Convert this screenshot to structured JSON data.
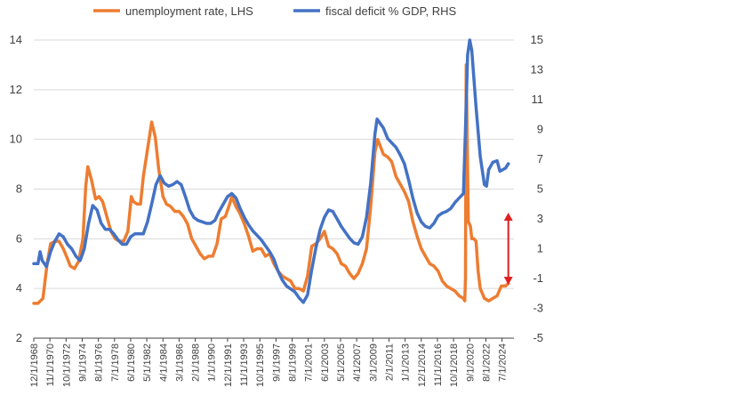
{
  "chart_data": {
    "type": "line",
    "legend": {
      "placement": "top",
      "items": [
        "unemployment rate, LHS",
        "fiscal deficit % GDP, RHS"
      ]
    },
    "ylim_left": [
      2,
      14
    ],
    "yticks_left": [
      "2",
      "4",
      "6",
      "8",
      "10",
      "12",
      "14"
    ],
    "ylim_right": [
      -5,
      15
    ],
    "yticks_right": [
      "-5",
      "-3",
      "-1",
      "1",
      "3",
      "5",
      "7",
      "9",
      "11",
      "13",
      "15"
    ],
    "xlim": [
      "12/1/1968",
      "12/1/2025"
    ],
    "xticks": [
      "12/1/1968",
      "11/1/1970",
      "10/1/1972",
      "9/1/1974",
      "8/1/1976",
      "7/1/1978",
      "6/1/1980",
      "5/1/1982",
      "4/1/1984",
      "3/1/1986",
      "2/1/1988",
      "1/1/1990",
      "12/1/1991",
      "11/1/1993",
      "10/1/1995",
      "9/1/1997",
      "8/1/1999",
      "7/1/2001",
      "6/1/2003",
      "5/1/2005",
      "4/1/2007",
      "3/1/2009",
      "2/1/2011",
      "1/1/2013",
      "12/1/2014",
      "11/1/2016",
      "10/1/2018",
      "9/1/2020",
      "8/1/2022",
      "7/1/2024"
    ],
    "grid": "horizontal",
    "colors": {
      "unemployment": "#ED7D31",
      "deficit": "#4472C4",
      "annotation_arrow": "#E02020",
      "grid": "#D9D9D9",
      "axis": "#404040"
    },
    "annotation": {
      "type": "double-arrow",
      "x": "4/1/2025",
      "y_from": 3.3,
      "y_to": -1.3,
      "axis": "right"
    },
    "series": [
      {
        "name": "unemployment rate, LHS",
        "axis": "left",
        "points": [
          [
            "12/1/1968",
            3.4
          ],
          [
            "6/1/1969",
            3.4
          ],
          [
            "1/1/1970",
            3.6
          ],
          [
            "7/1/1970",
            5.0
          ],
          [
            "12/1/1970",
            5.8
          ],
          [
            "6/1/1971",
            5.9
          ],
          [
            "12/1/1971",
            5.9
          ],
          [
            "6/1/1972",
            5.6
          ],
          [
            "12/1/1972",
            5.2
          ],
          [
            "4/1/1973",
            4.9
          ],
          [
            "10/1/1973",
            4.8
          ],
          [
            "4/1/1974",
            5.1
          ],
          [
            "10/1/1974",
            6.0
          ],
          [
            "2/1/1975",
            8.1
          ],
          [
            "5/1/1975",
            8.9
          ],
          [
            "10/1/1975",
            8.4
          ],
          [
            "4/1/1976",
            7.6
          ],
          [
            "9/1/1976",
            7.7
          ],
          [
            "2/1/1977",
            7.5
          ],
          [
            "8/1/1977",
            6.9
          ],
          [
            "2/1/1978",
            6.3
          ],
          [
            "8/1/1978",
            6.0
          ],
          [
            "2/1/1979",
            5.9
          ],
          [
            "8/1/1979",
            5.9
          ],
          [
            "2/1/1980",
            6.3
          ],
          [
            "7/1/1980",
            7.7
          ],
          [
            "10/1/1980",
            7.5
          ],
          [
            "3/1/1981",
            7.4
          ],
          [
            "8/1/1981",
            7.4
          ],
          [
            "12/1/1981",
            8.5
          ],
          [
            "6/1/1982",
            9.6
          ],
          [
            "12/1/1982",
            10.7
          ],
          [
            "5/1/1983",
            10.1
          ],
          [
            "10/1/1983",
            8.8
          ],
          [
            "4/1/1984",
            7.7
          ],
          [
            "9/1/1984",
            7.4
          ],
          [
            "3/1/1985",
            7.3
          ],
          [
            "9/1/1985",
            7.1
          ],
          [
            "3/1/1986",
            7.1
          ],
          [
            "9/1/1986",
            6.9
          ],
          [
            "3/1/1987",
            6.6
          ],
          [
            "9/1/1987",
            6.0
          ],
          [
            "3/1/1988",
            5.7
          ],
          [
            "9/1/1988",
            5.4
          ],
          [
            "3/1/1989",
            5.2
          ],
          [
            "9/1/1989",
            5.3
          ],
          [
            "3/1/1990",
            5.3
          ],
          [
            "9/1/1990",
            5.8
          ],
          [
            "3/1/1991",
            6.8
          ],
          [
            "9/1/1991",
            6.9
          ],
          [
            "3/1/1992",
            7.4
          ],
          [
            "6/1/1992",
            7.7
          ],
          [
            "12/1/1992",
            7.3
          ],
          [
            "6/1/1993",
            7.0
          ],
          [
            "12/1/1993",
            6.6
          ],
          [
            "6/1/1994",
            6.1
          ],
          [
            "12/1/1994",
            5.5
          ],
          [
            "6/1/1995",
            5.6
          ],
          [
            "12/1/1995",
            5.6
          ],
          [
            "6/1/1996",
            5.3
          ],
          [
            "12/1/1996",
            5.4
          ],
          [
            "6/1/1997",
            5.0
          ],
          [
            "12/1/1997",
            4.7
          ],
          [
            "6/1/1998",
            4.5
          ],
          [
            "12/1/1998",
            4.4
          ],
          [
            "6/1/1999",
            4.3
          ],
          [
            "12/1/1999",
            4.0
          ],
          [
            "6/1/2000",
            4.0
          ],
          [
            "12/1/2000",
            3.9
          ],
          [
            "6/1/2001",
            4.5
          ],
          [
            "12/1/2001",
            5.7
          ],
          [
            "6/1/2002",
            5.8
          ],
          [
            "12/1/2002",
            6.0
          ],
          [
            "6/1/2003",
            6.3
          ],
          [
            "12/1/2003",
            5.7
          ],
          [
            "6/1/2004",
            5.6
          ],
          [
            "12/1/2004",
            5.4
          ],
          [
            "6/1/2005",
            5.0
          ],
          [
            "12/1/2005",
            4.9
          ],
          [
            "6/1/2006",
            4.6
          ],
          [
            "12/1/2006",
            4.4
          ],
          [
            "6/1/2007",
            4.6
          ],
          [
            "12/1/2007",
            5.0
          ],
          [
            "6/1/2008",
            5.6
          ],
          [
            "12/1/2008",
            7.3
          ],
          [
            "6/1/2009",
            9.5
          ],
          [
            "10/1/2009",
            10.0
          ],
          [
            "6/1/2010",
            9.4
          ],
          [
            "12/1/2010",
            9.3
          ],
          [
            "6/1/2011",
            9.1
          ],
          [
            "12/1/2011",
            8.5
          ],
          [
            "6/1/2012",
            8.2
          ],
          [
            "12/1/2012",
            7.9
          ],
          [
            "6/1/2013",
            7.5
          ],
          [
            "12/1/2013",
            6.7
          ],
          [
            "6/1/2014",
            6.1
          ],
          [
            "12/1/2014",
            5.6
          ],
          [
            "6/1/2015",
            5.3
          ],
          [
            "12/1/2015",
            5.0
          ],
          [
            "6/1/2016",
            4.9
          ],
          [
            "12/1/2016",
            4.7
          ],
          [
            "6/1/2017",
            4.3
          ],
          [
            "12/1/2017",
            4.1
          ],
          [
            "6/1/2018",
            4.0
          ],
          [
            "12/1/2018",
            3.9
          ],
          [
            "6/1/2019",
            3.7
          ],
          [
            "12/1/2019",
            3.6
          ],
          [
            "2/1/2020",
            3.5
          ],
          [
            "3/1/2020",
            4.4
          ],
          [
            "4/1/2020",
            13.0
          ],
          [
            "5/1/2020",
            11.0
          ],
          [
            "7/1/2020",
            6.7
          ],
          [
            "10/1/2020",
            6.5
          ],
          [
            "12/1/2020",
            6.0
          ],
          [
            "3/1/2021",
            6.0
          ],
          [
            "6/1/2021",
            5.9
          ],
          [
            "9/1/2021",
            4.7
          ],
          [
            "12/1/2021",
            4.0
          ],
          [
            "6/1/2022",
            3.6
          ],
          [
            "12/1/2022",
            3.5
          ],
          [
            "6/1/2023",
            3.6
          ],
          [
            "12/1/2023",
            3.7
          ],
          [
            "6/1/2024",
            4.1
          ],
          [
            "12/1/2024",
            4.1
          ],
          [
            "4/1/2025",
            4.2
          ]
        ]
      },
      {
        "name": "fiscal deficit % GDP, RHS",
        "axis": "right",
        "points": [
          [
            "12/1/1968",
            0.0
          ],
          [
            "6/1/1969",
            0.0
          ],
          [
            "9/1/1969",
            0.8
          ],
          [
            "12/1/1969",
            0.2
          ],
          [
            "6/1/1970",
            -0.2
          ],
          [
            "12/1/1970",
            0.8
          ],
          [
            "6/1/1971",
            1.5
          ],
          [
            "12/1/1971",
            2.0
          ],
          [
            "6/1/1972",
            1.8
          ],
          [
            "12/1/1972",
            1.3
          ],
          [
            "6/1/1973",
            1.0
          ],
          [
            "12/1/1973",
            0.5
          ],
          [
            "6/1/1974",
            0.2
          ],
          [
            "12/1/1974",
            1.0
          ],
          [
            "6/1/1975",
            2.7
          ],
          [
            "12/1/1975",
            3.9
          ],
          [
            "6/1/1976",
            3.6
          ],
          [
            "12/1/1976",
            2.7
          ],
          [
            "6/1/1977",
            2.3
          ],
          [
            "12/1/1977",
            2.3
          ],
          [
            "6/1/1978",
            2.0
          ],
          [
            "12/1/1978",
            1.6
          ],
          [
            "6/1/1979",
            1.3
          ],
          [
            "12/1/1979",
            1.3
          ],
          [
            "6/1/1980",
            1.8
          ],
          [
            "12/1/1980",
            2.0
          ],
          [
            "6/1/1981",
            2.0
          ],
          [
            "12/1/1981",
            2.0
          ],
          [
            "6/1/1982",
            2.8
          ],
          [
            "12/1/1982",
            4.0
          ],
          [
            "6/1/1983",
            5.3
          ],
          [
            "12/1/1983",
            5.9
          ],
          [
            "6/1/1984",
            5.4
          ],
          [
            "12/1/1984",
            5.2
          ],
          [
            "6/1/1985",
            5.3
          ],
          [
            "12/1/1985",
            5.5
          ],
          [
            "6/1/1986",
            5.3
          ],
          [
            "12/1/1986",
            4.5
          ],
          [
            "6/1/1987",
            3.6
          ],
          [
            "12/1/1987",
            3.1
          ],
          [
            "6/1/1988",
            2.9
          ],
          [
            "12/1/1988",
            2.8
          ],
          [
            "6/1/1989",
            2.7
          ],
          [
            "12/1/1989",
            2.7
          ],
          [
            "6/1/1990",
            2.9
          ],
          [
            "12/1/1990",
            3.5
          ],
          [
            "6/1/1991",
            4.0
          ],
          [
            "12/1/1991",
            4.5
          ],
          [
            "6/1/1992",
            4.7
          ],
          [
            "12/1/1992",
            4.4
          ],
          [
            "6/1/1993",
            3.7
          ],
          [
            "12/1/1993",
            3.1
          ],
          [
            "6/1/1994",
            2.6
          ],
          [
            "12/1/1994",
            2.2
          ],
          [
            "6/1/1995",
            1.9
          ],
          [
            "12/1/1995",
            1.6
          ],
          [
            "6/1/1996",
            1.2
          ],
          [
            "12/1/1996",
            0.8
          ],
          [
            "6/1/1997",
            0.3
          ],
          [
            "12/1/1997",
            -0.5
          ],
          [
            "6/1/1998",
            -1.1
          ],
          [
            "12/1/1998",
            -1.5
          ],
          [
            "6/1/1999",
            -1.7
          ],
          [
            "12/1/1999",
            -1.9
          ],
          [
            "6/1/2000",
            -2.3
          ],
          [
            "12/1/2000",
            -2.6
          ],
          [
            "6/1/2001",
            -2.1
          ],
          [
            "12/1/2001",
            -0.4
          ],
          [
            "6/1/2002",
            1.1
          ],
          [
            "12/1/2002",
            2.3
          ],
          [
            "6/1/2003",
            3.1
          ],
          [
            "12/1/2003",
            3.6
          ],
          [
            "6/1/2004",
            3.5
          ],
          [
            "12/1/2004",
            3.0
          ],
          [
            "6/1/2005",
            2.5
          ],
          [
            "12/1/2005",
            2.1
          ],
          [
            "6/1/2006",
            1.7
          ],
          [
            "12/1/2006",
            1.4
          ],
          [
            "6/1/2007",
            1.3
          ],
          [
            "12/1/2007",
            1.8
          ],
          [
            "6/1/2008",
            3.1
          ],
          [
            "12/1/2008",
            5.4
          ],
          [
            "6/1/2009",
            8.7
          ],
          [
            "9/1/2009",
            9.7
          ],
          [
            "6/1/2010",
            9.1
          ],
          [
            "12/1/2010",
            8.4
          ],
          [
            "6/1/2011",
            8.1
          ],
          [
            "12/1/2011",
            7.8
          ],
          [
            "6/1/2012",
            7.3
          ],
          [
            "12/1/2012",
            6.7
          ],
          [
            "6/1/2013",
            5.6
          ],
          [
            "12/1/2013",
            4.4
          ],
          [
            "6/1/2014",
            3.4
          ],
          [
            "12/1/2014",
            2.8
          ],
          [
            "6/1/2015",
            2.5
          ],
          [
            "12/1/2015",
            2.4
          ],
          [
            "6/1/2016",
            2.7
          ],
          [
            "12/1/2016",
            3.2
          ],
          [
            "6/1/2017",
            3.4
          ],
          [
            "12/1/2017",
            3.5
          ],
          [
            "6/1/2018",
            3.7
          ],
          [
            "12/1/2018",
            4.1
          ],
          [
            "6/1/2019",
            4.4
          ],
          [
            "12/1/2019",
            4.7
          ],
          [
            "3/1/2020",
            9.0
          ],
          [
            "6/1/2020",
            14.0
          ],
          [
            "9/1/2020",
            15.0
          ],
          [
            "12/1/2020",
            14.3
          ],
          [
            "6/1/2021",
            10.5
          ],
          [
            "12/1/2021",
            7.2
          ],
          [
            "6/1/2022",
            5.3
          ],
          [
            "9/1/2022",
            5.2
          ],
          [
            "12/1/2022",
            6.3
          ],
          [
            "6/1/2023",
            6.8
          ],
          [
            "12/1/2023",
            6.9
          ],
          [
            "4/1/2024",
            6.2
          ],
          [
            "12/1/2024",
            6.4
          ],
          [
            "4/1/2025",
            6.7
          ]
        ]
      }
    ]
  }
}
